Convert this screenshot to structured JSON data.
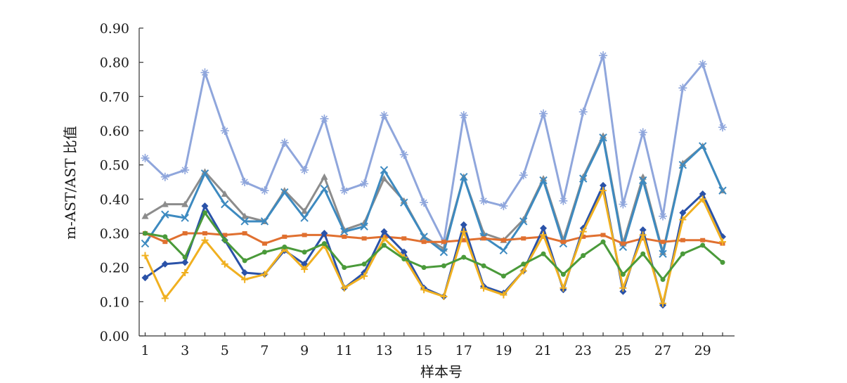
{
  "chart_data": {
    "type": "line",
    "title": "",
    "xlabel": "样本号",
    "ylabel": "m-AST/AST 比值",
    "ylim": [
      0,
      0.9
    ],
    "yticks": [
      "0.00",
      "0.10",
      "0.20",
      "0.30",
      "0.40",
      "0.50",
      "0.60",
      "0.70",
      "0.80",
      "0.90"
    ],
    "xticks": [
      "1",
      "3",
      "5",
      "7",
      "9",
      "11",
      "13",
      "15",
      "17",
      "19",
      "21",
      "23",
      "25",
      "27",
      "29"
    ],
    "x": [
      1,
      2,
      3,
      4,
      5,
      6,
      7,
      8,
      9,
      10,
      11,
      12,
      13,
      14,
      15,
      16,
      17,
      18,
      19,
      20,
      21,
      22,
      23,
      24,
      25,
      26,
      27,
      28,
      29,
      30
    ],
    "grid": false,
    "legend": "none",
    "series": [
      {
        "color": "#8fa6dc",
        "marker": "star",
        "values": [
          0.52,
          0.465,
          0.485,
          0.77,
          0.6,
          0.45,
          0.425,
          0.565,
          0.485,
          0.635,
          0.425,
          0.445,
          0.645,
          0.53,
          0.39,
          0.275,
          0.645,
          0.395,
          0.38,
          0.47,
          0.65,
          0.395,
          0.655,
          0.82,
          0.385,
          0.595,
          0.35,
          0.725,
          0.795,
          0.61
        ]
      },
      {
        "color": "#8c8c8c",
        "marker": "triangle",
        "values": [
          0.35,
          0.385,
          0.385,
          0.48,
          0.415,
          0.35,
          0.335,
          0.425,
          0.365,
          0.465,
          0.31,
          0.33,
          0.46,
          0.395,
          0.29,
          0.255,
          0.465,
          0.3,
          0.28,
          0.34,
          0.46,
          0.28,
          0.465,
          0.585,
          0.27,
          0.465,
          0.245,
          0.505,
          0.555,
          0.425
        ]
      },
      {
        "color": "#3d8ac0",
        "marker": "x",
        "values": [
          0.27,
          0.355,
          0.345,
          0.475,
          0.385,
          0.335,
          0.335,
          0.42,
          0.345,
          0.43,
          0.305,
          0.32,
          0.485,
          0.39,
          0.29,
          0.245,
          0.465,
          0.29,
          0.25,
          0.335,
          0.455,
          0.27,
          0.46,
          0.58,
          0.26,
          0.455,
          0.24,
          0.5,
          0.555,
          0.425
        ]
      },
      {
        "color": "#e07030",
        "marker": "square",
        "values": [
          0.3,
          0.275,
          0.3,
          0.3,
          0.295,
          0.3,
          0.27,
          0.29,
          0.295,
          0.295,
          0.29,
          0.285,
          0.29,
          0.285,
          0.275,
          0.275,
          0.28,
          0.285,
          0.28,
          0.285,
          0.29,
          0.275,
          0.29,
          0.295,
          0.27,
          0.285,
          0.275,
          0.28,
          0.28,
          0.27
        ]
      },
      {
        "color": "#2a52a8",
        "marker": "diamond",
        "values": [
          0.17,
          0.21,
          0.215,
          0.38,
          0.28,
          0.185,
          0.18,
          0.25,
          0.21,
          0.3,
          0.14,
          0.185,
          0.305,
          0.245,
          0.14,
          0.115,
          0.325,
          0.145,
          0.125,
          0.19,
          0.315,
          0.135,
          0.315,
          0.44,
          0.13,
          0.31,
          0.09,
          0.36,
          0.415,
          0.29
        ]
      },
      {
        "color": "#f0b020",
        "marker": "plus",
        "values": [
          0.235,
          0.11,
          0.185,
          0.28,
          0.21,
          0.165,
          0.18,
          0.255,
          0.195,
          0.265,
          0.14,
          0.175,
          0.285,
          0.23,
          0.135,
          0.115,
          0.305,
          0.14,
          0.12,
          0.19,
          0.295,
          0.14,
          0.305,
          0.425,
          0.14,
          0.295,
          0.095,
          0.34,
          0.4,
          0.275
        ]
      },
      {
        "color": "#4a9a3a",
        "marker": "circle",
        "values": [
          0.3,
          0.29,
          0.23,
          0.36,
          0.28,
          0.22,
          0.245,
          0.26,
          0.245,
          0.27,
          0.2,
          0.21,
          0.265,
          0.225,
          0.2,
          0.205,
          0.23,
          0.205,
          0.175,
          0.21,
          0.24,
          0.18,
          0.235,
          0.275,
          0.18,
          0.24,
          0.165,
          0.24,
          0.265,
          0.215
        ]
      }
    ]
  }
}
